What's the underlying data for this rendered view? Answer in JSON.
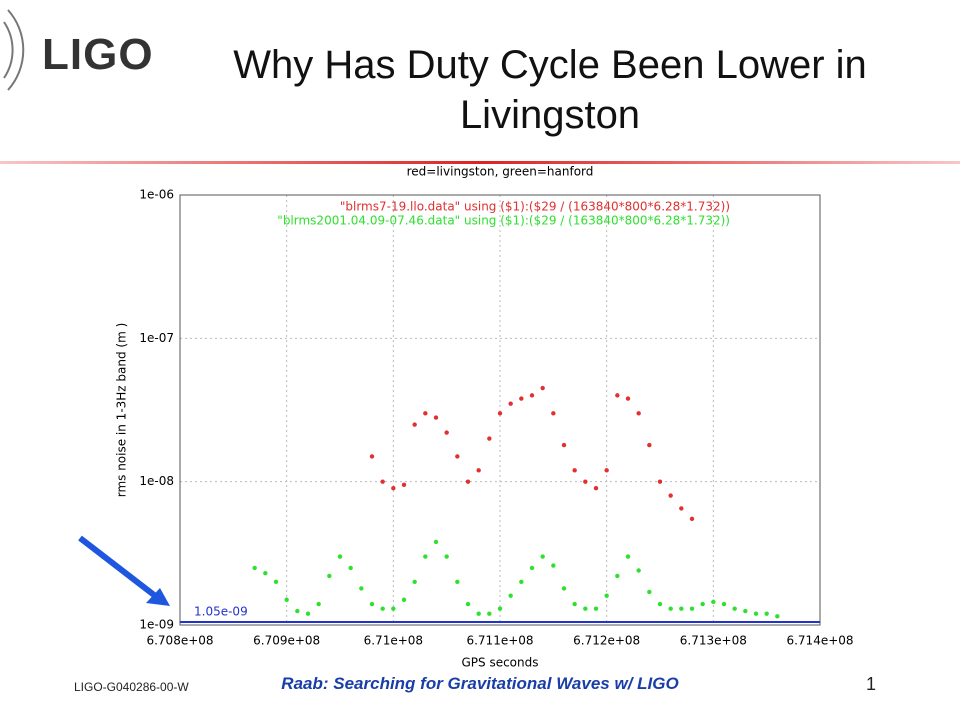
{
  "logo": "LIGO",
  "title": "Why Has Duty Cycle Been Lower in Livingston",
  "footer": {
    "left": "LIGO-G040286-00-W",
    "center": "Raab: Searching for Gravitational Waves w/ LIGO",
    "page": "1"
  },
  "chart_data": {
    "type": "scatter",
    "title": "red=livingston, green=hanford",
    "xlabel": "GPS seconds",
    "ylabel": "rms noise in 1-3Hz band (m   )",
    "ylog": true,
    "grid": true,
    "legend": "top-right",
    "xlim": [
      670800000,
      671400000
    ],
    "xticks": [
      {
        "value": 670800000,
        "label": "6.708e+08"
      },
      {
        "value": 670900000,
        "label": "6.709e+08"
      },
      {
        "value": 671000000,
        "label": "6.71e+08"
      },
      {
        "value": 671100000,
        "label": "6.711e+08"
      },
      {
        "value": 671200000,
        "label": "6.712e+08"
      },
      {
        "value": 671300000,
        "label": "6.713e+08"
      },
      {
        "value": 671400000,
        "label": "6.714e+08"
      }
    ],
    "ylim": [
      1e-09,
      1e-06
    ],
    "yticks": [
      {
        "value": 1e-09,
        "label": "1e-09"
      },
      {
        "value": 1e-08,
        "label": "1e-08"
      },
      {
        "value": 1e-07,
        "label": "1e-07"
      },
      {
        "value": 1e-06,
        "label": "1e-06"
      }
    ],
    "reference_line": {
      "value": 1.05e-09,
      "label": "1.05e-09",
      "color": "#2233cc"
    },
    "series": [
      {
        "name": "\"blrms7-19.llo.data\" using ($1):($29 / (163840*800*6.28*1.732))",
        "color": "#e03030",
        "x": [
          670980000,
          670990000,
          671000000,
          671010000,
          671020000,
          671030000,
          671040000,
          671050000,
          671060000,
          671070000,
          671080000,
          671090000,
          671100000,
          671110000,
          671120000,
          671130000,
          671140000,
          671150000,
          671160000,
          671170000,
          671180000,
          671190000,
          671200000,
          671210000,
          671220000,
          671230000,
          671240000,
          671250000,
          671260000,
          671270000,
          671280000
        ],
        "values": [
          1.5e-08,
          1e-08,
          9e-09,
          9.5e-09,
          2.5e-08,
          3e-08,
          2.8e-08,
          2.2e-08,
          1.5e-08,
          1e-08,
          1.2e-08,
          2e-08,
          3e-08,
          3.5e-08,
          3.8e-08,
          4e-08,
          4.5e-08,
          3e-08,
          1.8e-08,
          1.2e-08,
          1e-08,
          9e-09,
          1.2e-08,
          4e-08,
          3.8e-08,
          3e-08,
          1.8e-08,
          1e-08,
          8e-09,
          6.5e-09,
          5.5e-09
        ]
      },
      {
        "name": "\"blrms2001.04.09-07.46.data\" using ($1):($29 / (163840*800*6.28*1.732))",
        "color": "#30e030",
        "x": [
          670870000,
          670880000,
          670890000,
          670900000,
          670910000,
          670920000,
          670930000,
          670940000,
          670950000,
          670960000,
          670970000,
          670980000,
          670990000,
          671000000,
          671010000,
          671020000,
          671030000,
          671040000,
          671050000,
          671060000,
          671070000,
          671080000,
          671090000,
          671100000,
          671110000,
          671120000,
          671130000,
          671140000,
          671150000,
          671160000,
          671170000,
          671180000,
          671190000,
          671200000,
          671210000,
          671220000,
          671230000,
          671240000,
          671250000,
          671260000,
          671270000,
          671280000,
          671290000,
          671300000,
          671310000,
          671320000,
          671330000,
          671340000,
          671350000,
          671360000
        ],
        "values": [
          2.5e-09,
          2.3e-09,
          2e-09,
          1.5e-09,
          1.25e-09,
          1.2e-09,
          1.4e-09,
          2.2e-09,
          3e-09,
          2.5e-09,
          1.8e-09,
          1.4e-09,
          1.3e-09,
          1.3e-09,
          1.5e-09,
          2e-09,
          3e-09,
          3.8e-09,
          3e-09,
          2e-09,
          1.4e-09,
          1.2e-09,
          1.2e-09,
          1.3e-09,
          1.6e-09,
          2e-09,
          2.5e-09,
          3e-09,
          2.6e-09,
          1.8e-09,
          1.4e-09,
          1.3e-09,
          1.3e-09,
          1.6e-09,
          2.2e-09,
          3e-09,
          2.4e-09,
          1.7e-09,
          1.4e-09,
          1.3e-09,
          1.3e-09,
          1.3e-09,
          1.4e-09,
          1.45e-09,
          1.4e-09,
          1.3e-09,
          1.25e-09,
          1.2e-09,
          1.2e-09,
          1.15e-09
        ]
      }
    ]
  }
}
